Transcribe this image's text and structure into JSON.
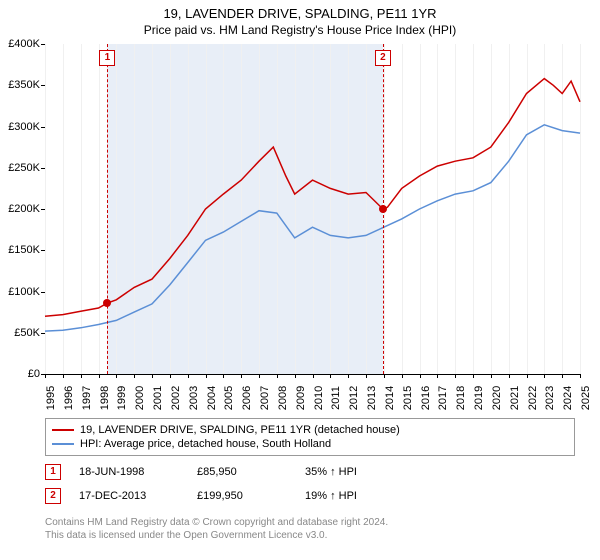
{
  "title": "19, LAVENDER DRIVE, SPALDING, PE11 1YR",
  "subtitle": "Price paid vs. HM Land Registry's House Price Index (HPI)",
  "chart": {
    "type": "line",
    "ylim": [
      0,
      400000
    ],
    "ytick_step": 50000,
    "yticks_labels": [
      "£0",
      "£50K",
      "£100K",
      "£150K",
      "£200K",
      "£250K",
      "£300K",
      "£350K",
      "£400K"
    ],
    "xlim": [
      1995,
      2025
    ],
    "xticks": [
      1995,
      1996,
      1997,
      1998,
      1999,
      2000,
      2001,
      2002,
      2003,
      2004,
      2005,
      2006,
      2007,
      2008,
      2009,
      2010,
      2011,
      2012,
      2013,
      2014,
      2015,
      2016,
      2017,
      2018,
      2019,
      2020,
      2021,
      2022,
      2023,
      2024,
      2025
    ],
    "shaded_ranges": [
      {
        "from": 1998.5,
        "to": 2013.95,
        "color": "#e8eef7"
      }
    ],
    "grid_color": "#f0f0f0",
    "background_color": "#ffffff",
    "series": [
      {
        "name": "price_paid",
        "label": "19, LAVENDER DRIVE, SPALDING, PE11 1YR (detached house)",
        "color": "#cc0000",
        "line_width": 1.5,
        "data": [
          [
            1995,
            70000
          ],
          [
            1996,
            72000
          ],
          [
            1997,
            76000
          ],
          [
            1998,
            80000
          ],
          [
            1998.5,
            85950
          ],
          [
            1999,
            90000
          ],
          [
            2000,
            105000
          ],
          [
            2001,
            115000
          ],
          [
            2002,
            140000
          ],
          [
            2003,
            168000
          ],
          [
            2004,
            200000
          ],
          [
            2005,
            218000
          ],
          [
            2006,
            235000
          ],
          [
            2007,
            258000
          ],
          [
            2007.8,
            275000
          ],
          [
            2008.5,
            240000
          ],
          [
            2009,
            218000
          ],
          [
            2010,
            235000
          ],
          [
            2011,
            225000
          ],
          [
            2012,
            218000
          ],
          [
            2013,
            220000
          ],
          [
            2013.95,
            199950
          ],
          [
            2014.2,
            202000
          ],
          [
            2015,
            225000
          ],
          [
            2016,
            240000
          ],
          [
            2017,
            252000
          ],
          [
            2018,
            258000
          ],
          [
            2019,
            262000
          ],
          [
            2020,
            275000
          ],
          [
            2021,
            305000
          ],
          [
            2022,
            340000
          ],
          [
            2023,
            358000
          ],
          [
            2023.5,
            350000
          ],
          [
            2024,
            340000
          ],
          [
            2024.5,
            355000
          ],
          [
            2025,
            330000
          ]
        ]
      },
      {
        "name": "hpi",
        "label": "HPI: Average price, detached house, South Holland",
        "color": "#5b8fd6",
        "line_width": 1.5,
        "data": [
          [
            1995,
            52000
          ],
          [
            1996,
            53000
          ],
          [
            1997,
            56000
          ],
          [
            1998,
            60000
          ],
          [
            1999,
            65000
          ],
          [
            2000,
            75000
          ],
          [
            2001,
            85000
          ],
          [
            2002,
            108000
          ],
          [
            2003,
            135000
          ],
          [
            2004,
            162000
          ],
          [
            2005,
            172000
          ],
          [
            2006,
            185000
          ],
          [
            2007,
            198000
          ],
          [
            2008,
            195000
          ],
          [
            2009,
            165000
          ],
          [
            2010,
            178000
          ],
          [
            2011,
            168000
          ],
          [
            2012,
            165000
          ],
          [
            2013,
            168000
          ],
          [
            2014,
            178000
          ],
          [
            2015,
            188000
          ],
          [
            2016,
            200000
          ],
          [
            2017,
            210000
          ],
          [
            2018,
            218000
          ],
          [
            2019,
            222000
          ],
          [
            2020,
            232000
          ],
          [
            2021,
            258000
          ],
          [
            2022,
            290000
          ],
          [
            2023,
            302000
          ],
          [
            2024,
            295000
          ],
          [
            2025,
            292000
          ]
        ]
      }
    ],
    "markers": [
      {
        "id": "1",
        "x": 1998.5,
        "y": 85950,
        "color": "#cc0000"
      },
      {
        "id": "2",
        "x": 2013.95,
        "y": 199950,
        "color": "#cc0000"
      }
    ]
  },
  "transactions": [
    {
      "id": "1",
      "date": "18-JUN-1998",
      "price": "£85,950",
      "pct": "35% ↑ HPI",
      "color": "#cc0000"
    },
    {
      "id": "2",
      "date": "17-DEC-2013",
      "price": "£199,950",
      "pct": "19% ↑ HPI",
      "color": "#cc0000"
    }
  ],
  "footer": {
    "line1": "Contains HM Land Registry data © Crown copyright and database right 2024.",
    "line2": "This data is licensed under the Open Government Licence v3.0."
  }
}
